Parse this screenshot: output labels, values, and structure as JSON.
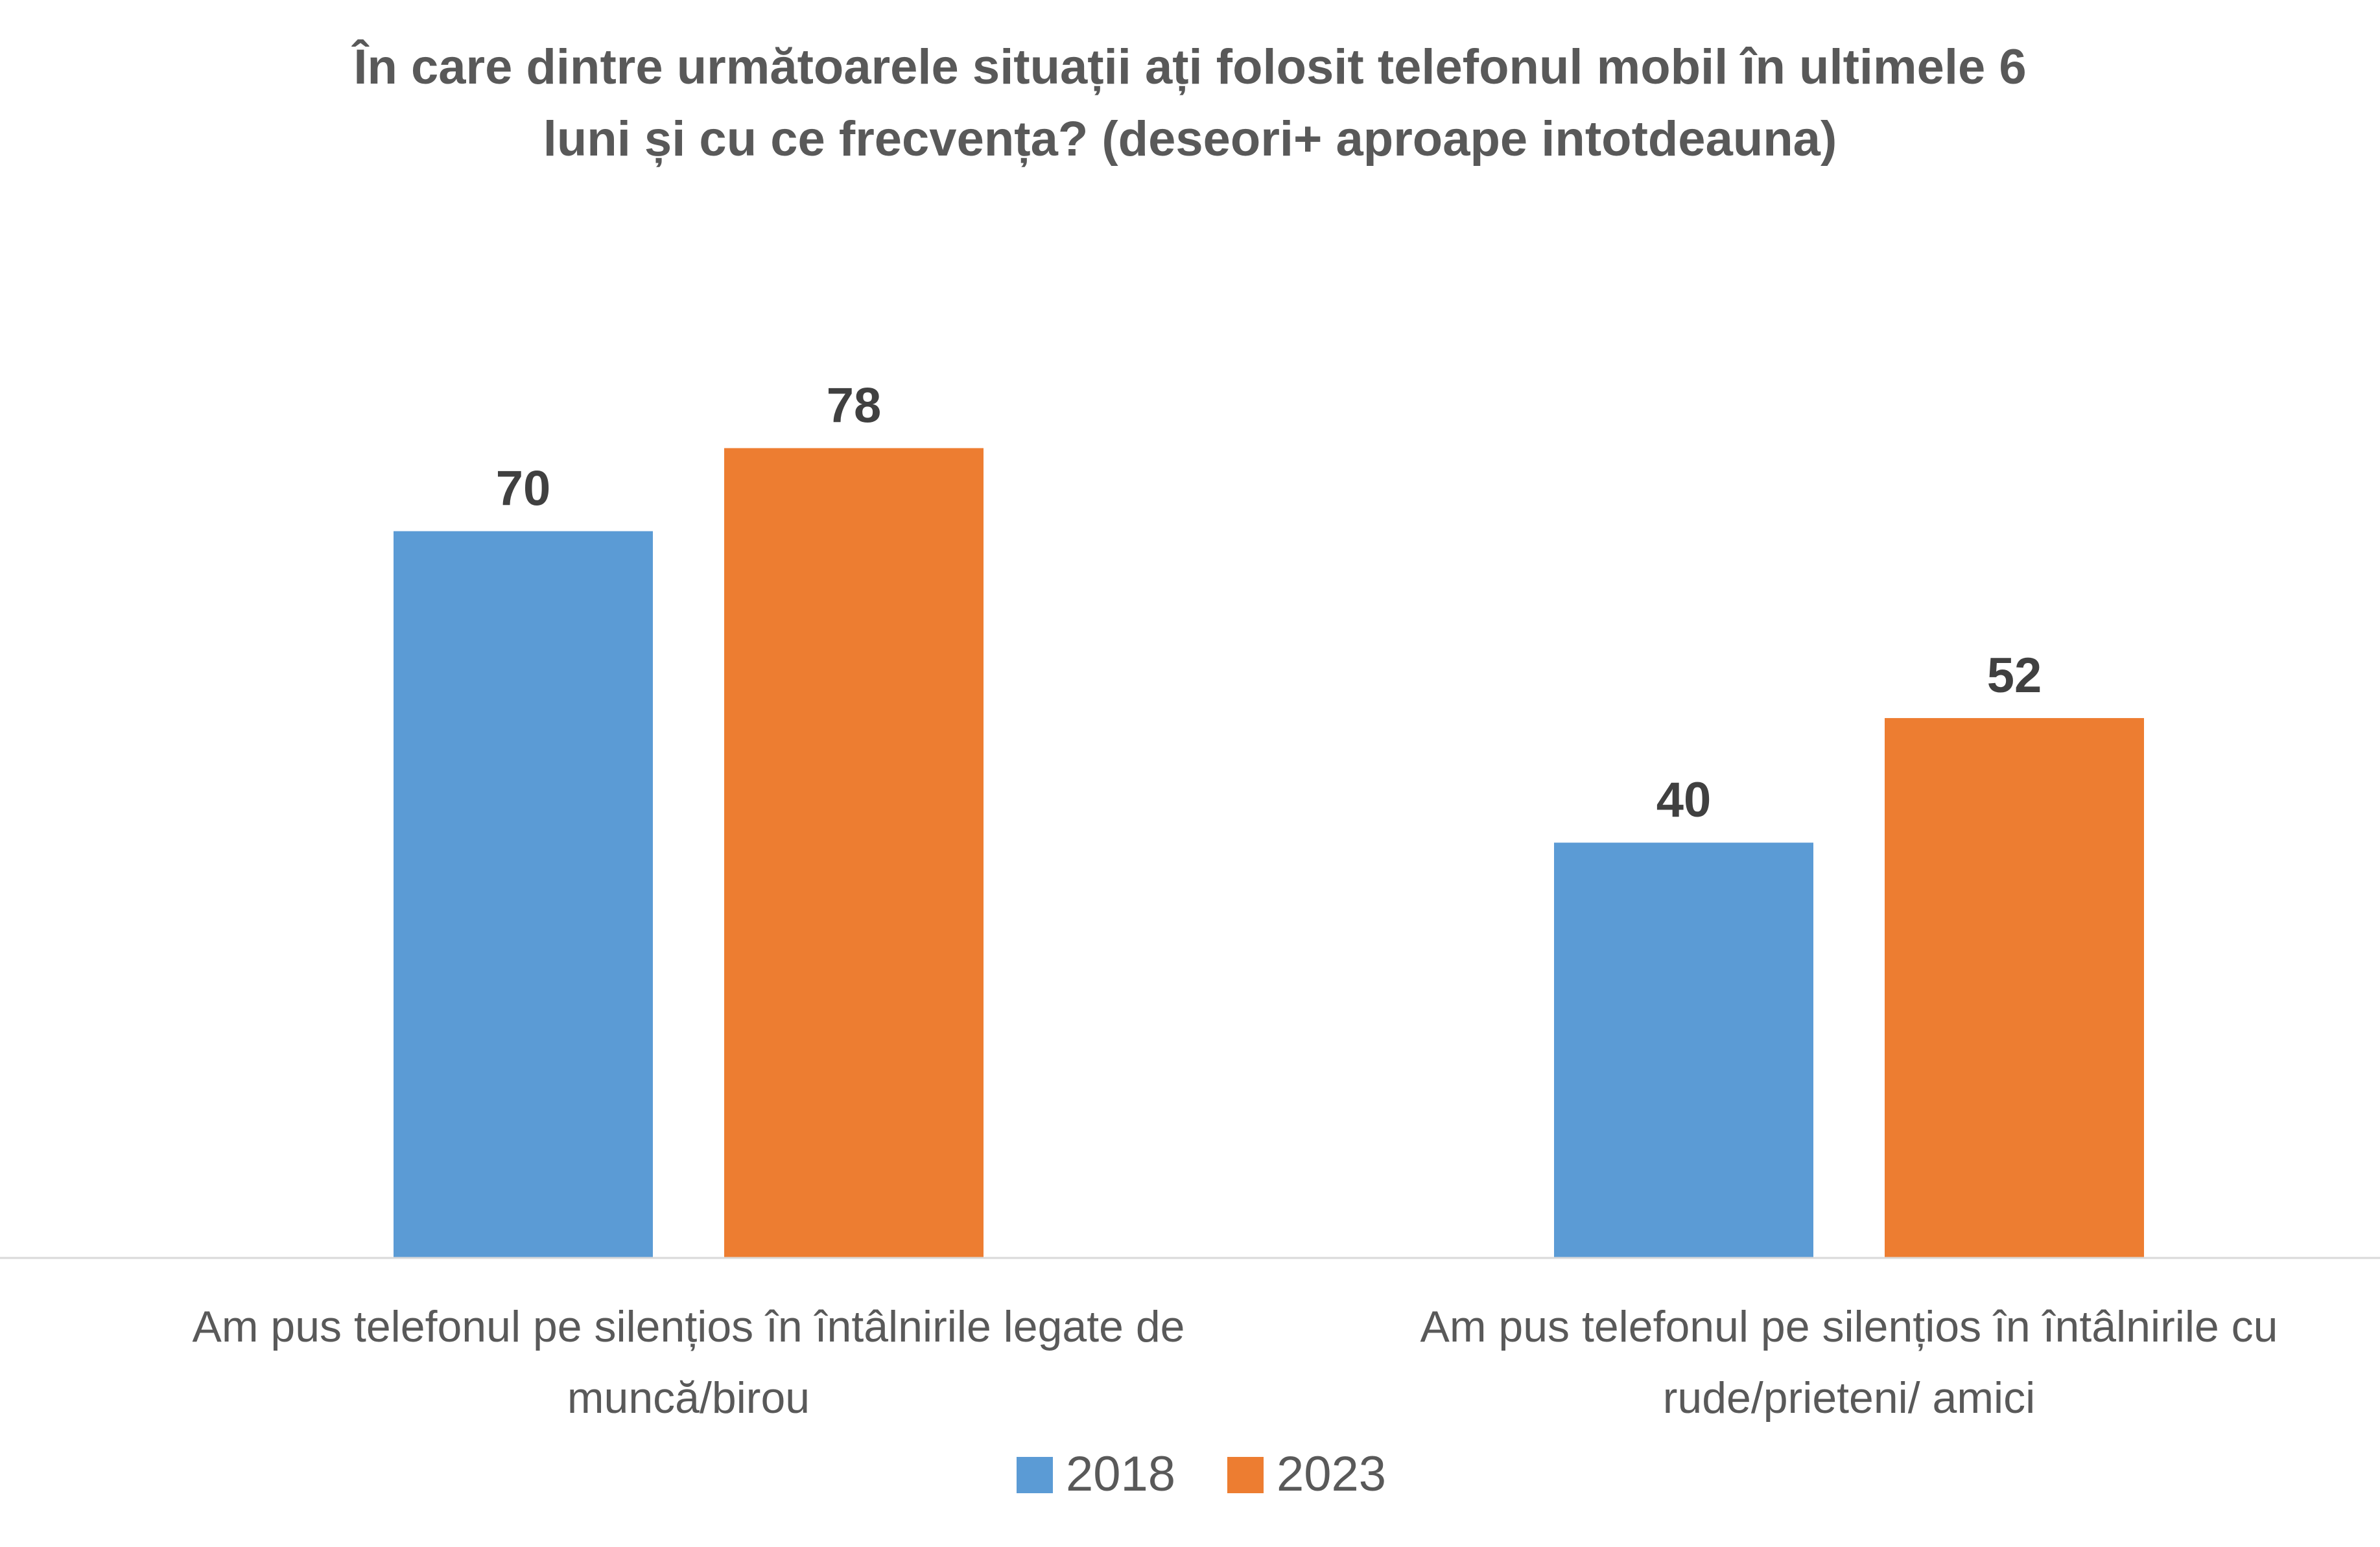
{
  "chart_data": {
    "type": "bar",
    "title_lines": [
      "În care dintre următoarele situații ați folosit telefonul mobil în ultimele 6",
      "luni și cu ce frecvența? (deseori+ aproape intotdeauna)"
    ],
    "categories": [
      [
        "Am pus telefonul pe silențios în întâlnirile legate de",
        "muncă/birou"
      ],
      [
        "Am pus telefonul pe silențios în întâlnirile cu",
        "rude/prieteni/ amici"
      ]
    ],
    "series": [
      {
        "name": "2018",
        "color": "#5B9BD5",
        "values": [
          70,
          40
        ]
      },
      {
        "name": "2023",
        "color": "#ED7D31",
        "values": [
          78,
          52
        ]
      }
    ],
    "ylim": [
      0,
      90
    ],
    "xlabel": "",
    "ylabel": "",
    "grid": false,
    "data_labels": true,
    "legend_position": "bottom-center"
  }
}
